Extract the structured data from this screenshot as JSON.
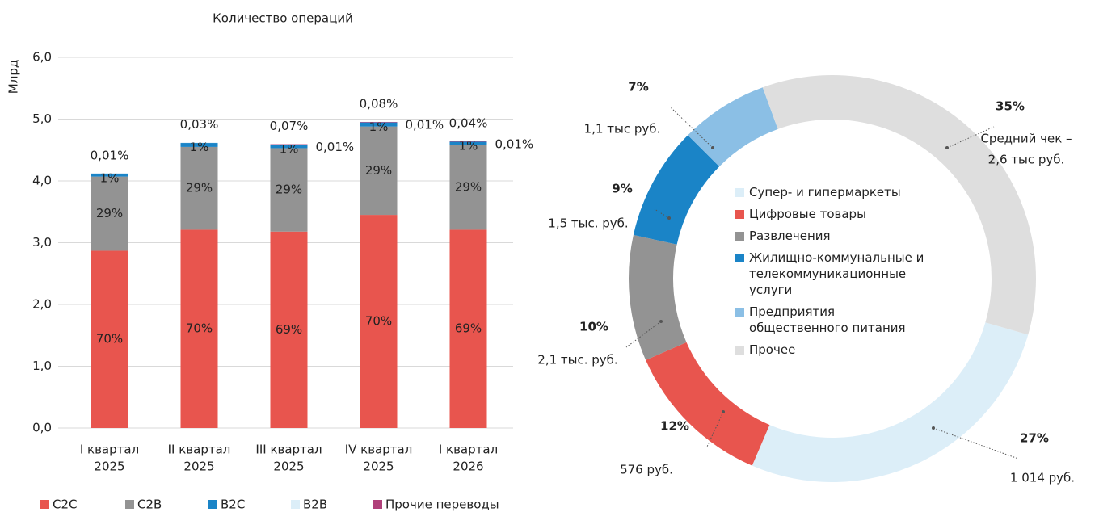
{
  "chart_data": [
    {
      "type": "stacked_bar",
      "title": "Количество операций",
      "ylabel": "Млрд",
      "categories": [
        [
          "I квартал",
          "2025"
        ],
        [
          "II квартал",
          "2025"
        ],
        [
          "III квартал",
          "2025"
        ],
        [
          "IV квартал",
          "2025"
        ],
        [
          "I квартал",
          "2026"
        ]
      ],
      "ylim": [
        0,
        6
      ],
      "yticks": [
        {
          "value": 0,
          "label": "0,0"
        },
        {
          "value": 1,
          "label": "1,0"
        },
        {
          "value": 2,
          "label": "2,0"
        },
        {
          "value": 3,
          "label": "3,0"
        },
        {
          "value": 4,
          "label": "4,0"
        },
        {
          "value": 5,
          "label": "5,0"
        },
        {
          "value": 6,
          "label": "6,0"
        }
      ],
      "grid": true,
      "series": [
        {
          "name": "C2C",
          "color": "#e8554e",
          "values": [
            2.87,
            3.21,
            3.18,
            3.45,
            3.21
          ],
          "value_labels": [
            "70%",
            "70%",
            "69%",
            "70%",
            "69%"
          ]
        },
        {
          "name": "C2B",
          "color": "#939393",
          "values": [
            1.2,
            1.34,
            1.35,
            1.43,
            1.37
          ],
          "value_labels": [
            "29%",
            "29%",
            "29%",
            "29%",
            "29%"
          ]
        },
        {
          "name": "B2C",
          "color": "#1a84c7",
          "values": [
            0.05,
            0.07,
            0.06,
            0.07,
            0.06
          ],
          "value_labels": [
            "1%",
            "1%",
            "1%",
            "1%",
            "1%"
          ]
        },
        {
          "name": "B2B",
          "color": "#dceef8",
          "values": [
            0.0004,
            0.0014,
            0.0032,
            0.004,
            0.0019
          ],
          "value_labels": [
            "0,01%",
            "0,03%",
            "0,07%",
            "0,08%",
            "0,04%"
          ]
        },
        {
          "name": "Прочие переводы",
          "color": "#b0407a",
          "values": [
            null,
            null,
            0.0005,
            0.0005,
            0.0005
          ],
          "value_labels": [
            null,
            null,
            "0,01%",
            "0,01%",
            "0,01%"
          ]
        }
      ]
    },
    {
      "type": "donut",
      "categories": [
        "Супер- и гипермаркеты",
        "Цифровые товары",
        "Развлечения",
        "Жилищно-коммунальные и телекоммуникационные услуги",
        "Предприятия общественного питания",
        "Прочее"
      ],
      "values": [
        27,
        12,
        10,
        9,
        7,
        35
      ],
      "value_labels": [
        "27%",
        "12%",
        "10%",
        "9%",
        "7%",
        "35%"
      ],
      "colors": [
        "#dceef8",
        "#e8554e",
        "#939393",
        "#1a84c7",
        "#8bbfe5",
        "#dedede"
      ],
      "notes": [
        [
          "1 014 руб."
        ],
        [
          "576 руб."
        ],
        [
          "2,1 тыс. руб."
        ],
        [
          "1,5 тыс. руб."
        ],
        [
          "1,1 тыс руб."
        ],
        [
          "Средний чек –",
          "2,6 тыс руб."
        ]
      ]
    }
  ]
}
